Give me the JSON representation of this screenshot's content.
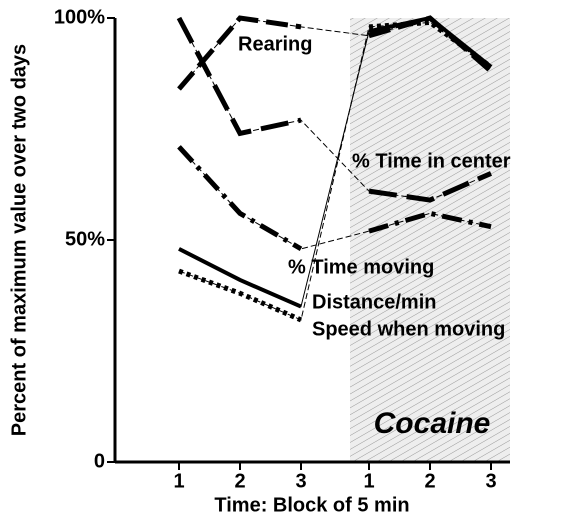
{
  "chart_data": {
    "type": "line",
    "xlabel": "Time: Block of 5 min",
    "ylabel": "Percent of maximum value over two days",
    "annotation": "Cocaine",
    "categories": [
      "1",
      "2",
      "3",
      "1",
      "2",
      "3"
    ],
    "ylim": [
      0,
      100
    ],
    "yticks": [
      0,
      {
        "value": 50,
        "label": "50%"
      },
      {
        "value": 100,
        "label": "100%"
      }
    ],
    "series": [
      {
        "name": "Rearing",
        "color": "#000000",
        "values": [
          84,
          100,
          98,
          96,
          100,
          88
        ]
      },
      {
        "name": "% Time in center",
        "color": "#000000",
        "values": [
          100,
          74,
          77,
          61,
          59,
          65
        ]
      },
      {
        "name": "% Time moving",
        "color": "#000000",
        "values": [
          71,
          56,
          48,
          52,
          56,
          53
        ]
      },
      {
        "name": "Distance/min",
        "color": "#000000",
        "values": [
          48,
          41,
          35,
          97,
          100,
          89
        ]
      },
      {
        "name": "Speed when moving",
        "color": "#000000",
        "values": [
          43,
          38,
          32,
          98,
          99,
          89
        ]
      }
    ]
  }
}
